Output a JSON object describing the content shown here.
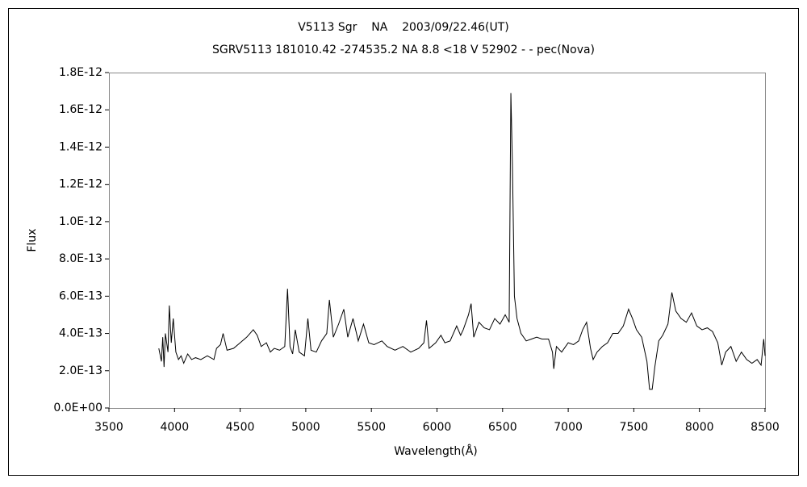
{
  "chart_data": {
    "type": "line",
    "title": "V5113 Sgr    NA    2003/09/22.46(UT)",
    "subtitle": "SGRV5113 181010.42 -274535.2 NA 8.8 <18 V 52902 - - pec(Nova)",
    "x_label": "Wavelength(Å)",
    "y_label": "Flux",
    "color": "#000000",
    "grid": false,
    "xlim": [
      3500,
      8500
    ],
    "xticks": [
      3500,
      4000,
      4500,
      5000,
      5500,
      6000,
      6500,
      7000,
      7500,
      8000,
      8500
    ],
    "ylim": [
      0,
      1.8e-12
    ],
    "yticks": [
      {
        "value": 0,
        "label": "0.0E+00"
      },
      {
        "value": 2e-13,
        "label": "2.0E-13"
      },
      {
        "value": 4e-13,
        "label": "4.0E-13"
      },
      {
        "value": 6e-13,
        "label": "6.0E-13"
      },
      {
        "value": 8e-13,
        "label": "8.0E-13"
      },
      {
        "value": 1e-12,
        "label": "1.0E-12"
      },
      {
        "value": 1.2e-12,
        "label": "1.2E-12"
      },
      {
        "value": 1.4e-12,
        "label": "1.4E-12"
      },
      {
        "value": 1.6e-12,
        "label": "1.6E-12"
      },
      {
        "value": 1.8e-12,
        "label": "1.8E-12"
      }
    ],
    "x": [
      3880,
      3900,
      3910,
      3920,
      3930,
      3950,
      3960,
      3975,
      3990,
      4010,
      4030,
      4050,
      4070,
      4100,
      4130,
      4160,
      4200,
      4250,
      4300,
      4320,
      4350,
      4370,
      4400,
      4450,
      4500,
      4550,
      4600,
      4630,
      4660,
      4700,
      4730,
      4760,
      4800,
      4840,
      4861,
      4880,
      4900,
      4920,
      4950,
      4990,
      5016,
      5040,
      5080,
      5120,
      5160,
      5180,
      5210,
      5250,
      5290,
      5320,
      5360,
      5400,
      5440,
      5480,
      5520,
      5580,
      5620,
      5680,
      5740,
      5800,
      5860,
      5900,
      5920,
      5940,
      5990,
      6030,
      6060,
      6100,
      6150,
      6180,
      6200,
      6240,
      6260,
      6280,
      6320,
      6360,
      6400,
      6440,
      6480,
      6520,
      6550,
      6563,
      6575,
      6590,
      6610,
      6640,
      6680,
      6720,
      6760,
      6800,
      6850,
      6880,
      6890,
      6910,
      6950,
      7000,
      7040,
      7080,
      7110,
      7140,
      7170,
      7190,
      7220,
      7260,
      7300,
      7340,
      7380,
      7420,
      7460,
      7490,
      7520,
      7560,
      7600,
      7620,
      7640,
      7660,
      7690,
      7720,
      7760,
      7790,
      7820,
      7860,
      7900,
      7940,
      7980,
      8020,
      8060,
      8100,
      8140,
      8170,
      8200,
      8240,
      8280,
      8320,
      8360,
      8400,
      8440,
      8470,
      8490,
      8500
    ],
    "values": [
      3.2e-13,
      2.5e-13,
      3.8e-13,
      2.2e-13,
      4e-13,
      3e-13,
      5.5e-13,
      3.5e-13,
      4.8e-13,
      3e-13,
      2.6e-13,
      2.8e-13,
      2.4e-13,
      2.9e-13,
      2.6e-13,
      2.7e-13,
      2.6e-13,
      2.8e-13,
      2.6e-13,
      3.2e-13,
      3.4e-13,
      4e-13,
      3.1e-13,
      3.2e-13,
      3.5e-13,
      3.8e-13,
      4.2e-13,
      3.9e-13,
      3.3e-13,
      3.5e-13,
      3e-13,
      3.2e-13,
      3.1e-13,
      3.3e-13,
      6.4e-13,
      3.3e-13,
      2.9e-13,
      4.2e-13,
      3e-13,
      2.8e-13,
      4.8e-13,
      3.1e-13,
      3e-13,
      3.6e-13,
      4e-13,
      5.8e-13,
      3.8e-13,
      4.5e-13,
      5.3e-13,
      3.8e-13,
      4.8e-13,
      3.6e-13,
      4.5e-13,
      3.5e-13,
      3.4e-13,
      3.6e-13,
      3.3e-13,
      3.1e-13,
      3.3e-13,
      3e-13,
      3.2e-13,
      3.5e-13,
      4.7e-13,
      3.2e-13,
      3.5e-13,
      3.9e-13,
      3.5e-13,
      3.6e-13,
      4.4e-13,
      3.9e-13,
      4.2e-13,
      5e-13,
      5.6e-13,
      3.8e-13,
      4.6e-13,
      4.3e-13,
      4.2e-13,
      4.8e-13,
      4.5e-13,
      5e-13,
      4.6e-13,
      1.69e-12,
      1.3e-12,
      6e-13,
      4.8e-13,
      4e-13,
      3.6e-13,
      3.7e-13,
      3.8e-13,
      3.7e-13,
      3.7e-13,
      3e-13,
      2.1e-13,
      3.3e-13,
      3e-13,
      3.5e-13,
      3.4e-13,
      3.6e-13,
      4.2e-13,
      4.6e-13,
      3.2e-13,
      2.6e-13,
      3e-13,
      3.3e-13,
      3.5e-13,
      4e-13,
      4e-13,
      4.4e-13,
      5.3e-13,
      4.8e-13,
      4.2e-13,
      3.8e-13,
      2.5e-13,
      1e-13,
      1e-13,
      2.2e-13,
      3.6e-13,
      3.9e-13,
      4.5e-13,
      6.2e-13,
      5.2e-13,
      4.8e-13,
      4.6e-13,
      5.1e-13,
      4.4e-13,
      4.2e-13,
      4.3e-13,
      4.1e-13,
      3.5e-13,
      2.3e-13,
      3e-13,
      3.3e-13,
      2.5e-13,
      3e-13,
      2.6e-13,
      2.4e-13,
      2.6e-13,
      2.3e-13,
      3.7e-13,
      2.8e-13
    ]
  }
}
